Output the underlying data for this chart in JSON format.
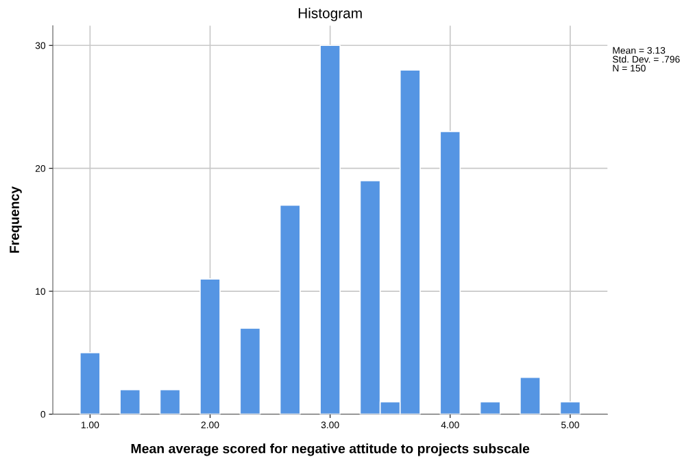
{
  "chart_data": {
    "type": "histogram",
    "title": "Histogram",
    "xlabel": "Mean average scored for negative attitude to projects subscale",
    "ylabel": "Frequency",
    "bins": [
      0.917,
      1.083,
      1.25,
      1.417,
      1.583,
      1.75,
      1.917,
      2.083,
      2.25,
      2.417,
      2.583,
      2.75,
      2.917,
      3.083,
      3.25,
      3.417,
      3.583,
      3.75,
      3.917,
      4.083,
      4.25,
      4.417,
      4.583,
      4.75,
      4.917,
      5.083
    ],
    "values": [
      5,
      0,
      2,
      0,
      2,
      0,
      11,
      0,
      7,
      0,
      17,
      0,
      30,
      0,
      19,
      1,
      28,
      0,
      23,
      0,
      1,
      0,
      3,
      0,
      1
    ],
    "color": "#5595e3",
    "xlim": [
      0.69,
      5.31
    ],
    "ylim": [
      0,
      31.6
    ],
    "xticks": [
      {
        "value": 1,
        "label": "1.00"
      },
      {
        "value": 2,
        "label": "2.00"
      },
      {
        "value": 3,
        "label": "3.00"
      },
      {
        "value": 4,
        "label": "4.00"
      },
      {
        "value": 5,
        "label": "5.00"
      }
    ],
    "yticks": [
      0,
      10,
      20,
      30
    ],
    "grid": true,
    "annotations": [
      "Mean = 3.13\nStd. Dev. = .796\nN = 150"
    ]
  }
}
